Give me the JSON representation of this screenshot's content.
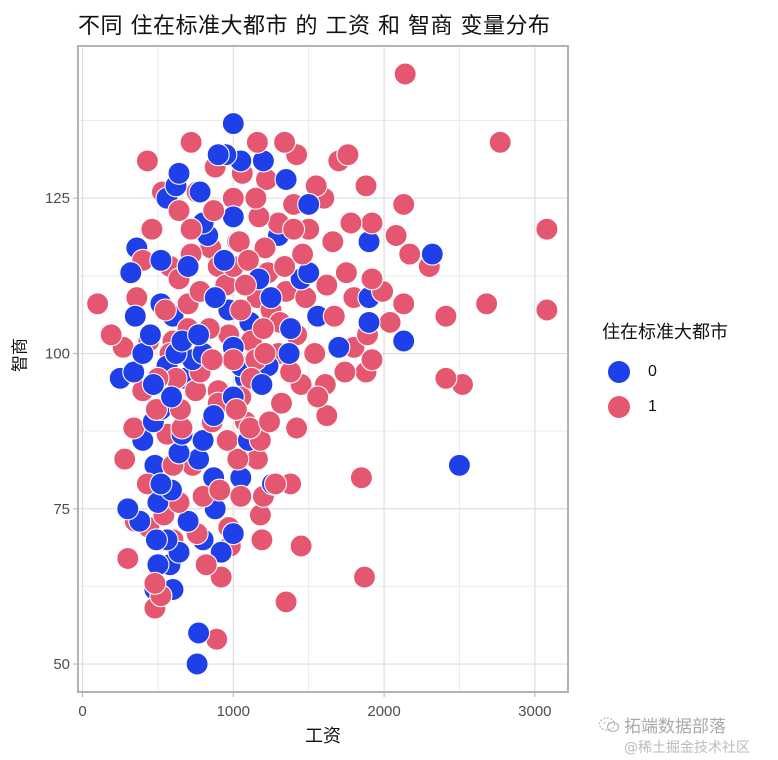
{
  "title": "不同 住在标准大都市 的 工资 和 智商 变量分布",
  "legend": {
    "title": "住在标准大都市",
    "items": [
      {
        "label": "0",
        "color": "#1f3fe8"
      },
      {
        "label": "1",
        "color": "#e55771"
      }
    ]
  },
  "watermark": {
    "icon": "wechat-icon",
    "line1": "拓端数据部落",
    "line2": "@稀土掘金技术社区"
  },
  "chart_data": {
    "type": "scatter",
    "title": "不同 住在标准大都市 的 工资 和 智商 变量分布",
    "xlabel": "工资",
    "ylabel": "智商",
    "x_ticks": [
      0,
      1000,
      2000,
      3000
    ],
    "y_ticks": [
      50,
      75,
      100,
      125
    ],
    "xlim": [
      -30,
      3220
    ],
    "ylim": [
      45.5,
      149.5
    ],
    "grid": true,
    "legend_position": "right",
    "legend_title": "住在标准大都市",
    "point_outline": "#ffffff",
    "series": [
      {
        "name": "0",
        "color": "#1f3fe8",
        "points": [
          [
            1000,
            137
          ],
          [
            900,
            132
          ],
          [
            950,
            132
          ],
          [
            1050,
            131
          ],
          [
            1200,
            131
          ],
          [
            640,
            129
          ],
          [
            620,
            127
          ],
          [
            1350,
            128
          ],
          [
            780,
            126
          ],
          [
            560,
            125
          ],
          [
            1500,
            124
          ],
          [
            1000,
            122
          ],
          [
            800,
            121
          ],
          [
            830,
            119
          ],
          [
            1300,
            119
          ],
          [
            1030,
            118
          ],
          [
            1900,
            118
          ],
          [
            360,
            117
          ],
          [
            940,
            115
          ],
          [
            2320,
            116
          ],
          [
            520,
            115
          ],
          [
            700,
            114
          ],
          [
            1500,
            113
          ],
          [
            320,
            113
          ],
          [
            1170,
            112
          ],
          [
            1450,
            112
          ],
          [
            880,
            109
          ],
          [
            1250,
            109
          ],
          [
            1900,
            109
          ],
          [
            520,
            108
          ],
          [
            350,
            106
          ],
          [
            600,
            106
          ],
          [
            970,
            107
          ],
          [
            1560,
            106
          ],
          [
            1110,
            105
          ],
          [
            1900,
            105
          ],
          [
            1380,
            104
          ],
          [
            450,
            103
          ],
          [
            770,
            103
          ],
          [
            660,
            102
          ],
          [
            2130,
            102
          ],
          [
            1000,
            101
          ],
          [
            400,
            100
          ],
          [
            620,
            100
          ],
          [
            800,
            100
          ],
          [
            730,
            99
          ],
          [
            560,
            98
          ],
          [
            340,
            97
          ],
          [
            1050,
            98
          ],
          [
            1230,
            98
          ],
          [
            1080,
            96
          ],
          [
            250,
            96
          ],
          [
            680,
            96
          ],
          [
            470,
            95
          ],
          [
            1190,
            95
          ],
          [
            590,
            93
          ],
          [
            1000,
            93
          ],
          [
            520,
            91
          ],
          [
            870,
            90
          ],
          [
            470,
            89
          ],
          [
            660,
            87
          ],
          [
            400,
            86
          ],
          [
            800,
            86
          ],
          [
            1100,
            86
          ],
          [
            640,
            84
          ],
          [
            770,
            83
          ],
          [
            480,
            82
          ],
          [
            2500,
            82
          ],
          [
            1050,
            80
          ],
          [
            870,
            80
          ],
          [
            520,
            79
          ],
          [
            1260,
            79
          ],
          [
            590,
            78
          ],
          [
            300,
            75
          ],
          [
            380,
            73
          ],
          [
            880,
            75
          ],
          [
            500,
            76
          ],
          [
            700,
            73
          ],
          [
            490,
            70
          ],
          [
            560,
            70
          ],
          [
            1000,
            71
          ],
          [
            640,
            68
          ],
          [
            500,
            66
          ],
          [
            580,
            66
          ],
          [
            920,
            68
          ],
          [
            800,
            70
          ],
          [
            480,
            62
          ],
          [
            600,
            62
          ],
          [
            770,
            55
          ],
          [
            760,
            50
          ],
          [
            1700,
            101
          ],
          [
            1370,
            100
          ]
        ]
      },
      {
        "name": "1",
        "color": "#e55771",
        "points": [
          [
            2140,
            145
          ],
          [
            2770,
            134
          ],
          [
            720,
            134
          ],
          [
            1160,
            134
          ],
          [
            1340,
            134
          ],
          [
            430,
            131
          ],
          [
            1420,
            132
          ],
          [
            1760,
            132
          ],
          [
            880,
            130
          ],
          [
            1060,
            129
          ],
          [
            1700,
            131
          ],
          [
            1220,
            128
          ],
          [
            530,
            126
          ],
          [
            760,
            126
          ],
          [
            1550,
            127
          ],
          [
            1880,
            127
          ],
          [
            2130,
            124
          ],
          [
            1000,
            125
          ],
          [
            1600,
            125
          ],
          [
            1400,
            124
          ],
          [
            870,
            123
          ],
          [
            640,
            123
          ],
          [
            1170,
            122
          ],
          [
            1300,
            121
          ],
          [
            1780,
            121
          ],
          [
            1920,
            121
          ],
          [
            460,
            120
          ],
          [
            720,
            120
          ],
          [
            3080,
            120
          ],
          [
            2080,
            119
          ],
          [
            1660,
            118
          ],
          [
            1040,
            118
          ],
          [
            1210,
            117
          ],
          [
            2170,
            116
          ],
          [
            2300,
            114
          ],
          [
            400,
            115
          ],
          [
            580,
            114
          ],
          [
            900,
            114
          ],
          [
            1460,
            116
          ],
          [
            1340,
            114
          ],
          [
            1750,
            113
          ],
          [
            1920,
            112
          ],
          [
            640,
            112
          ],
          [
            1080,
            111
          ],
          [
            1230,
            113
          ],
          [
            1620,
            111
          ],
          [
            780,
            110
          ],
          [
            1990,
            110
          ],
          [
            1800,
            109
          ],
          [
            1480,
            109
          ],
          [
            1160,
            109
          ],
          [
            360,
            109
          ],
          [
            100,
            108
          ],
          [
            2130,
            108
          ],
          [
            2680,
            108
          ],
          [
            3080,
            107
          ],
          [
            550,
            107
          ],
          [
            1050,
            107
          ],
          [
            1670,
            106
          ],
          [
            2040,
            105
          ],
          [
            2410,
            106
          ],
          [
            1310,
            105
          ],
          [
            840,
            104
          ],
          [
            700,
            104
          ],
          [
            970,
            103
          ],
          [
            190,
            103
          ],
          [
            1890,
            103
          ],
          [
            1420,
            103
          ],
          [
            1120,
            102
          ],
          [
            600,
            102
          ],
          [
            440,
            102
          ],
          [
            1800,
            101
          ],
          [
            270,
            101
          ],
          [
            1540,
            100
          ],
          [
            1210,
            100
          ],
          [
            860,
            99
          ],
          [
            1000,
            99
          ],
          [
            1920,
            99
          ],
          [
            1740,
            97
          ],
          [
            1880,
            97
          ],
          [
            1380,
            97
          ],
          [
            620,
            96
          ],
          [
            2410,
            96
          ],
          [
            2520,
            95
          ],
          [
            1120,
            96
          ],
          [
            1450,
            95
          ],
          [
            1610,
            95
          ],
          [
            900,
            94
          ],
          [
            400,
            94
          ],
          [
            750,
            94
          ],
          [
            1560,
            93
          ],
          [
            1320,
            92
          ],
          [
            1020,
            91
          ],
          [
            490,
            91
          ],
          [
            1620,
            90
          ],
          [
            1240,
            89
          ],
          [
            860,
            89
          ],
          [
            660,
            88
          ],
          [
            1420,
            88
          ],
          [
            1110,
            88
          ],
          [
            1180,
            86
          ],
          [
            960,
            86
          ],
          [
            280,
            83
          ],
          [
            600,
            82
          ],
          [
            730,
            82
          ],
          [
            1030,
            83
          ],
          [
            1160,
            83
          ],
          [
            1850,
            80
          ],
          [
            1280,
            79
          ],
          [
            910,
            78
          ],
          [
            1050,
            77
          ],
          [
            1380,
            79
          ],
          [
            800,
            77
          ],
          [
            1200,
            77
          ],
          [
            640,
            76
          ],
          [
            540,
            74
          ],
          [
            1180,
            74
          ],
          [
            350,
            73
          ],
          [
            970,
            72
          ],
          [
            760,
            71
          ],
          [
            440,
            72
          ],
          [
            600,
            70
          ],
          [
            1190,
            70
          ],
          [
            1450,
            69
          ],
          [
            980,
            69
          ],
          [
            300,
            67
          ],
          [
            820,
            66
          ],
          [
            920,
            64
          ],
          [
            1870,
            64
          ],
          [
            480,
            63
          ],
          [
            520,
            61
          ],
          [
            1350,
            60
          ],
          [
            480,
            59
          ],
          [
            890,
            54
          ],
          [
            1100,
            115
          ],
          [
            1250,
            107
          ],
          [
            950,
            111
          ],
          [
            700,
            108
          ],
          [
            580,
            100
          ],
          [
            1050,
            93
          ],
          [
            1300,
            100
          ],
          [
            780,
            97
          ],
          [
            850,
            117
          ],
          [
            1150,
            125
          ],
          [
            1400,
            120
          ],
          [
            500,
            96
          ],
          [
            650,
            91
          ],
          [
            1200,
            104
          ],
          [
            1500,
            120
          ],
          [
            340,
            88
          ],
          [
            430,
            79
          ],
          [
            560,
            87
          ],
          [
            720,
            116
          ],
          [
            1000,
            114
          ],
          [
            1350,
            110
          ],
          [
            1150,
            99
          ],
          [
            900,
            92
          ],
          [
            1080,
            89
          ]
        ]
      }
    ]
  }
}
